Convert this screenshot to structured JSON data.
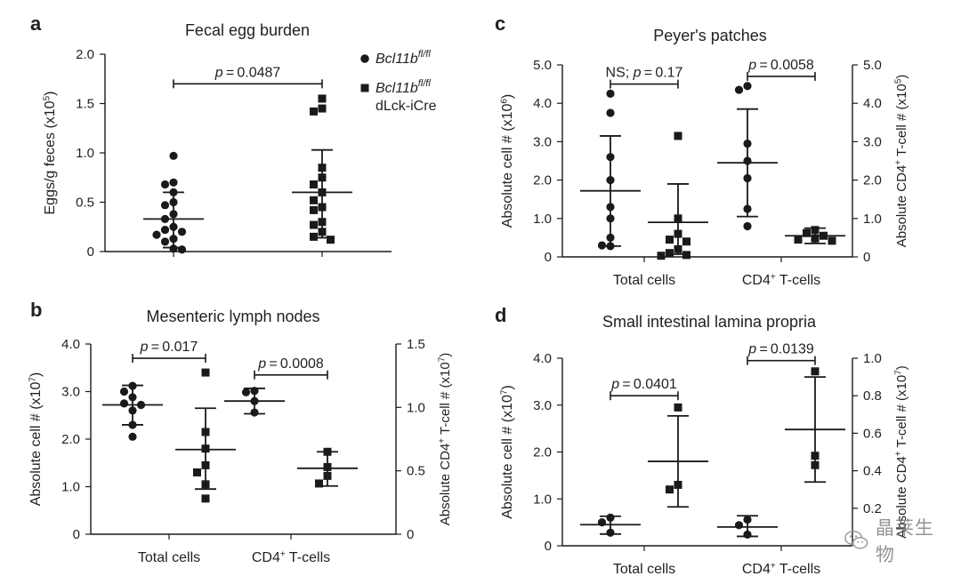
{
  "legend": {
    "entries": [
      {
        "marker": "circle",
        "gene": "Bcl11b",
        "sup": "fl/fl",
        "line2": ""
      },
      {
        "marker": "square",
        "gene": "Bcl11b",
        "sup": "fl/fl",
        "line2": "dLck-iCre"
      }
    ]
  },
  "watermark": {
    "text": "晶莱生物",
    "icon": "wechat-icon"
  },
  "chart_data": [
    {
      "panel": "a",
      "type": "scatter",
      "title": "Fecal egg burden",
      "ylabel": "Eggs/g feces (x10^5)",
      "ylim": [
        0,
        2.0
      ],
      "yticks": [
        "0",
        "0.5",
        "1.0",
        "1.5",
        "2.0"
      ],
      "categories": [
        "",
        ""
      ],
      "groups": [
        {
          "marker": "circle",
          "cat": 0,
          "mean": 0.33,
          "sd_low": 0.04,
          "sd_high": 0.6,
          "points": [
            0.97,
            0.7,
            0.68,
            0.6,
            0.5,
            0.47,
            0.38,
            0.33,
            0.25,
            0.22,
            0.2,
            0.17,
            0.13,
            0.1,
            0.03,
            0.02
          ]
        },
        {
          "marker": "square",
          "cat": 1,
          "mean": 0.6,
          "sd_low": 0.14,
          "sd_high": 1.03,
          "points": [
            1.55,
            1.45,
            1.42,
            0.85,
            0.75,
            0.68,
            0.6,
            0.52,
            0.45,
            0.42,
            0.3,
            0.27,
            0.2,
            0.15,
            0.12
          ]
        }
      ],
      "annotations": [
        {
          "ns": "",
          "p": "0.0487",
          "from": 0,
          "to": 1,
          "y": 1.7
        }
      ]
    },
    {
      "panel": "b",
      "type": "scatter",
      "title": "Mesenteric lymph nodes",
      "ylabel": "Absolute cell # (x10^7)",
      "ylabel2": "Absolute CD4+ T-cell # (x10^7)",
      "ylim": [
        0,
        4.0
      ],
      "yticks": [
        "0",
        "1.0",
        "2.0",
        "3.0",
        "4.0"
      ],
      "ylim2": [
        0,
        1.5
      ],
      "yticks2": [
        "0",
        "0.5",
        "1.0",
        "1.5"
      ],
      "categories": [
        "Total cells",
        "CD4+ T-cells"
      ],
      "groups": [
        {
          "marker": "circle",
          "axis": "left",
          "cat": 0,
          "off": -1,
          "mean": 2.72,
          "sd_low": 2.3,
          "sd_high": 3.13,
          "points": [
            3.12,
            3.0,
            2.88,
            2.75,
            2.72,
            2.6,
            2.3,
            2.05
          ]
        },
        {
          "marker": "square",
          "axis": "left",
          "cat": 0,
          "off": 1,
          "mean": 1.78,
          "sd_low": 0.95,
          "sd_high": 2.65,
          "points": [
            3.4,
            2.15,
            1.8,
            1.45,
            1.3,
            1.05,
            0.75
          ]
        },
        {
          "marker": "circle",
          "axis": "right",
          "cat": 1,
          "off": -1,
          "mean": 1.05,
          "sd_low": 0.95,
          "sd_high": 1.15,
          "points": [
            1.13,
            1.12,
            1.05,
            0.96
          ]
        },
        {
          "marker": "square",
          "axis": "right",
          "cat": 1,
          "off": 1,
          "mean": 0.52,
          "sd_low": 0.38,
          "sd_high": 0.65,
          "points": [
            0.65,
            0.53,
            0.46,
            0.4
          ]
        }
      ],
      "annotations": [
        {
          "ns": "",
          "p": "0.017",
          "axis": "left",
          "from": [
            0,
            -1
          ],
          "to": [
            0,
            1
          ],
          "y": 3.7
        },
        {
          "ns": "",
          "p": "0.0008",
          "axis": "left",
          "from": [
            1,
            -1
          ],
          "to": [
            1,
            1
          ],
          "y": 3.35
        }
      ]
    },
    {
      "panel": "c",
      "type": "scatter",
      "title": "Peyer's patches",
      "ylabel": "Absolute cell # (x10^6)",
      "ylabel2": "Absolute CD4+ T-cell # (x10^5)",
      "ylim": [
        0,
        5.0
      ],
      "yticks": [
        "0",
        "1.0",
        "2.0",
        "3.0",
        "4.0",
        "5.0"
      ],
      "ylim2": [
        0,
        5.0
      ],
      "yticks2": [
        "0",
        "1.0",
        "2.0",
        "3.0",
        "4.0",
        "5.0"
      ],
      "categories": [
        "Total cells",
        "CD4+ T-cells"
      ],
      "groups": [
        {
          "marker": "circle",
          "axis": "left",
          "cat": 0,
          "off": -1,
          "mean": 1.72,
          "sd_low": 0.28,
          "sd_high": 3.15,
          "points": [
            4.25,
            3.75,
            2.6,
            2.0,
            1.3,
            1.0,
            0.5,
            0.3,
            0.28
          ]
        },
        {
          "marker": "square",
          "axis": "left",
          "cat": 0,
          "off": 1,
          "mean": 0.9,
          "sd_low": 0.07,
          "sd_high": 1.9,
          "points": [
            3.15,
            1.0,
            0.6,
            0.45,
            0.4,
            0.2,
            0.1,
            0.05,
            0.03
          ]
        },
        {
          "marker": "circle",
          "axis": "right",
          "cat": 1,
          "off": -1,
          "mean": 2.45,
          "sd_low": 1.05,
          "sd_high": 3.85,
          "points": [
            4.45,
            4.35,
            2.95,
            2.5,
            2.05,
            1.25,
            0.8
          ]
        },
        {
          "marker": "square",
          "axis": "right",
          "cat": 1,
          "off": 1,
          "mean": 0.55,
          "sd_low": 0.35,
          "sd_high": 0.75,
          "points": [
            0.7,
            0.62,
            0.55,
            0.48,
            0.45,
            0.42
          ]
        }
      ],
      "annotations": [
        {
          "ns": "NS;",
          "p": "0.17",
          "axis": "left",
          "from": [
            0,
            -1
          ],
          "to": [
            0,
            1
          ],
          "y": 4.5
        },
        {
          "ns": "",
          "p": "0.0058",
          "axis": "left",
          "from": [
            1,
            -1
          ],
          "to": [
            1,
            1
          ],
          "y": 4.7
        }
      ]
    },
    {
      "panel": "d",
      "type": "scatter",
      "title": "Small intestinal lamina propria",
      "ylabel": "Absolute cell # (x10^7)",
      "ylabel2": "Absolute CD4+ T-cell # (x10^7)",
      "ylim": [
        0,
        4.0
      ],
      "yticks": [
        "0",
        "1.0",
        "2.0",
        "3.0",
        "4.0"
      ],
      "ylim2": [
        0,
        1.0
      ],
      "yticks2": [
        "0.2",
        "0.4",
        "0.6",
        "0.8",
        "1.0"
      ],
      "categories": [
        "Total cells",
        "CD4+ T-cells"
      ],
      "groups": [
        {
          "marker": "circle",
          "axis": "left",
          "cat": 0,
          "off": -1,
          "mean": 0.45,
          "sd_low": 0.25,
          "sd_high": 0.63,
          "points": [
            0.6,
            0.5,
            0.28
          ]
        },
        {
          "marker": "square",
          "axis": "left",
          "cat": 0,
          "off": 1,
          "mean": 1.8,
          "sd_low": 0.83,
          "sd_high": 2.77,
          "points": [
            2.95,
            1.3,
            1.2
          ]
        },
        {
          "marker": "circle",
          "axis": "right",
          "cat": 1,
          "off": -1,
          "mean": 0.1,
          "sd_low": 0.05,
          "sd_high": 0.16,
          "points": [
            0.14,
            0.11,
            0.06
          ]
        },
        {
          "marker": "square",
          "axis": "right",
          "cat": 1,
          "off": 1,
          "mean": 0.62,
          "sd_low": 0.34,
          "sd_high": 0.9,
          "points": [
            0.93,
            0.48,
            0.43
          ]
        }
      ],
      "annotations": [
        {
          "ns": "",
          "p": "0.0401",
          "axis": "left",
          "from": [
            0,
            -1
          ],
          "to": [
            0,
            1
          ],
          "y": 3.2
        },
        {
          "ns": "",
          "p": "0.0139",
          "axis": "left",
          "from": [
            1,
            -1
          ],
          "to": [
            1,
            1
          ],
          "y": 3.95
        }
      ]
    }
  ]
}
